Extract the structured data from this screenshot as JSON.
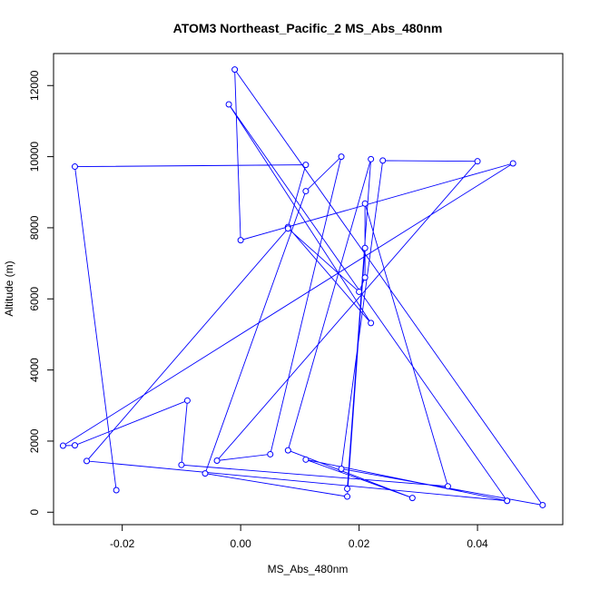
{
  "chart_data": {
    "type": "line",
    "title": "ATOM3 Northeast_Pacific_2 MS_Abs_480nm",
    "xlabel": "MS_Abs_480nm",
    "ylabel": "Altitude (m)",
    "xlim": [
      -0.0316,
      0.0544
    ],
    "ylim": [
      -350,
      12900
    ],
    "x_ticks": [
      -0.02,
      0.0,
      0.02,
      0.04
    ],
    "x_tick_labels": [
      "-0.02",
      "0.00",
      "0.02",
      "0.04"
    ],
    "y_ticks": [
      0,
      2000,
      4000,
      6000,
      8000,
      10000,
      12000
    ],
    "y_tick_labels": [
      "0",
      "2000",
      "4000",
      "6000",
      "8000",
      "10000",
      "12000"
    ],
    "grid": false,
    "series": [
      {
        "color": "#0000ff",
        "marker": "open-circle",
        "points": [
          {
            "x": -0.021,
            "y": 620
          },
          {
            "x": -0.028,
            "y": 9720
          },
          {
            "x": 0.011,
            "y": 9770
          },
          {
            "x": 0.008,
            "y": 8020
          },
          {
            "x": 0.022,
            "y": 5320
          },
          {
            "x": -0.002,
            "y": 11470
          },
          {
            "x": 0.045,
            "y": 320
          },
          {
            "x": 0.011,
            "y": 1480
          },
          {
            "x": 0.029,
            "y": 400
          },
          {
            "x": 0.008,
            "y": 1740
          },
          {
            "x": 0.022,
            "y": 9930
          },
          {
            "x": 0.018,
            "y": 660
          },
          {
            "x": 0.021,
            "y": 7430
          },
          {
            "x": 0.018,
            "y": 440
          },
          {
            "x": -0.006,
            "y": 1090
          },
          {
            "x": 0.011,
            "y": 9030
          },
          {
            "x": 0.017,
            "y": 10000
          },
          {
            "x": 0.005,
            "y": 1630
          },
          {
            "x": -0.004,
            "y": 1450
          },
          {
            "x": 0.04,
            "y": 9870
          },
          {
            "x": 0.024,
            "y": 9890
          },
          {
            "x": 0.017,
            "y": 1220
          },
          {
            "x": 0.051,
            "y": 200
          },
          {
            "x": -0.001,
            "y": 12450
          },
          {
            "x": 0.0,
            "y": 7650
          },
          {
            "x": 0.046,
            "y": 9810
          },
          {
            "x": -0.03,
            "y": 1870
          },
          {
            "x": -0.028,
            "y": 1880
          },
          {
            "x": -0.009,
            "y": 3140
          },
          {
            "x": -0.01,
            "y": 1330
          },
          {
            "x": 0.035,
            "y": 730
          },
          {
            "x": 0.021,
            "y": 8680
          },
          {
            "x": 0.021,
            "y": 6600
          },
          {
            "x": 0.02,
            "y": 6200
          },
          {
            "x": 0.008,
            "y": 7980
          },
          {
            "x": -0.026,
            "y": 1440
          },
          {
            "x": 0.045,
            "y": 320
          }
        ]
      }
    ]
  }
}
